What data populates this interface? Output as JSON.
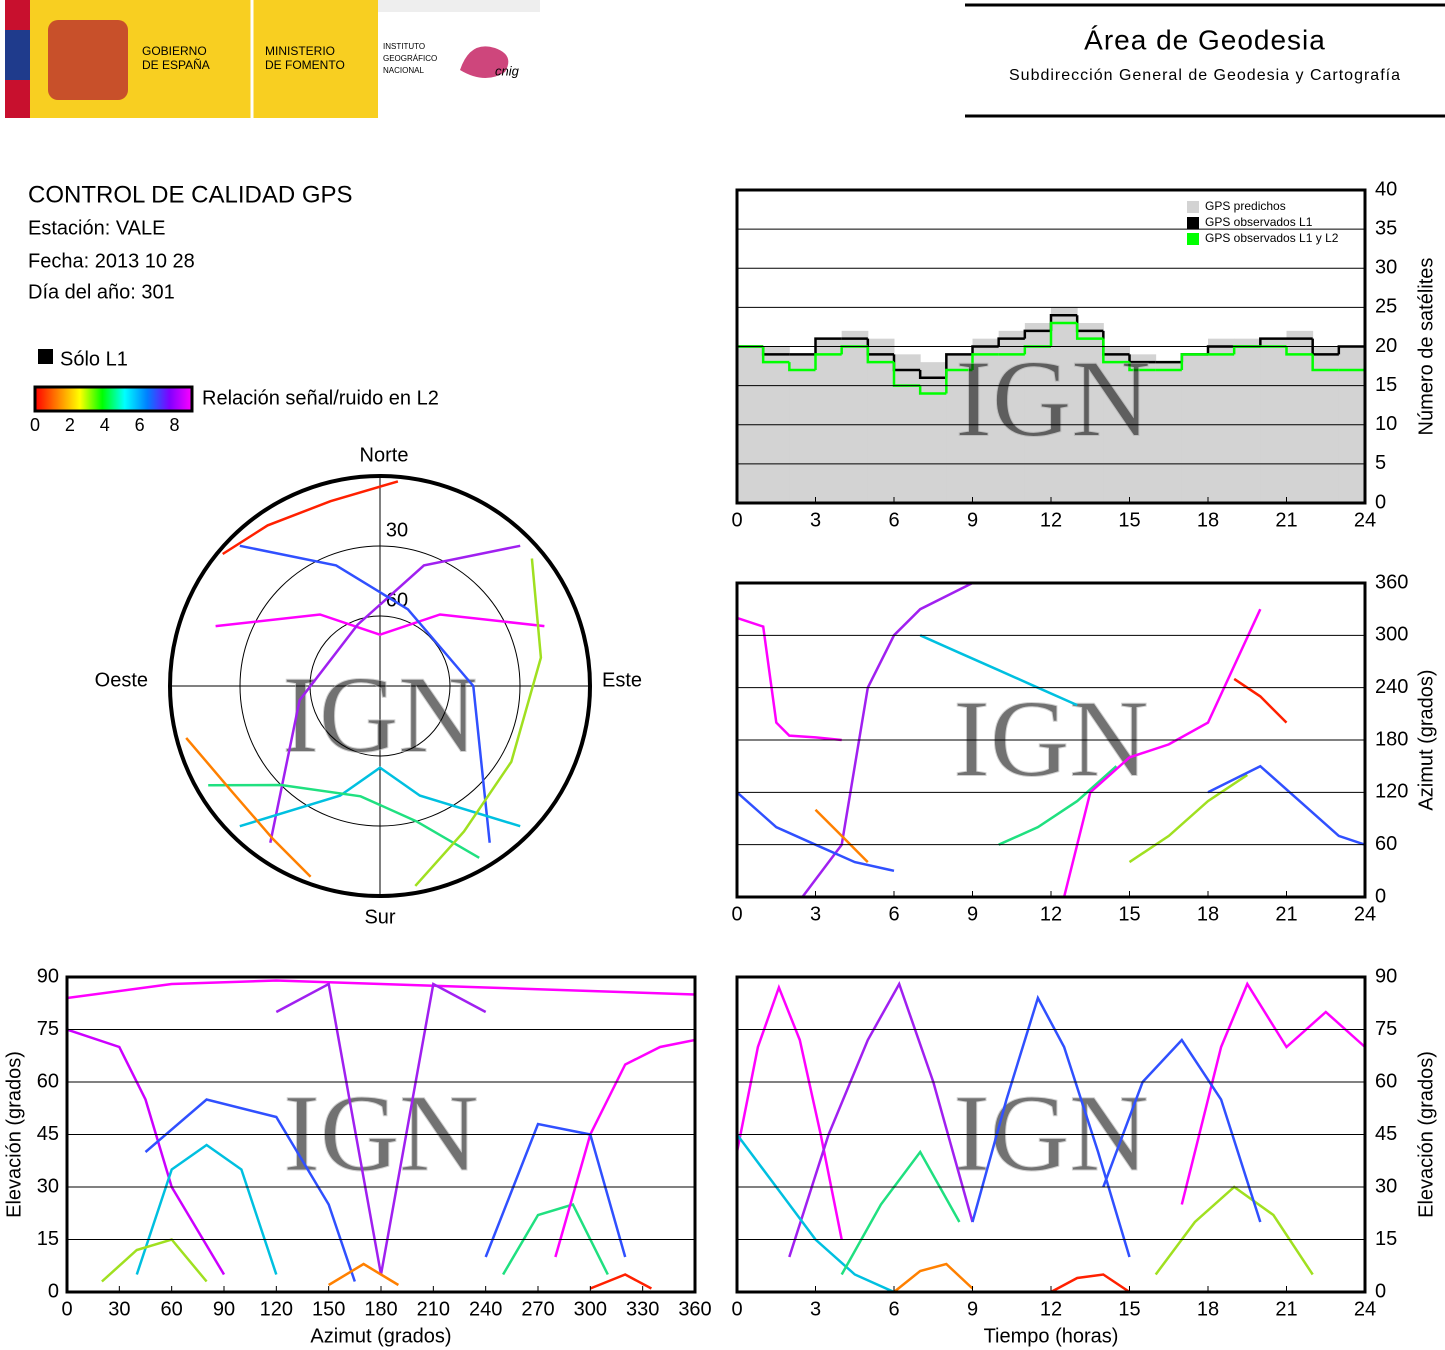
{
  "header": {
    "gobierno": [
      "GOBIERNO",
      "DE ESPAÑA"
    ],
    "ministerio": [
      "MINISTERIO",
      "DE FOMENTO"
    ],
    "instituto": [
      "INSTITUTO",
      "GEOGRÁFICO",
      "NACIONAL"
    ],
    "cnig": "cnig",
    "title": "Área de Geodesia",
    "subtitle": "Subdirección General de Geodesia y Cartografía"
  },
  "report": {
    "title": "CONTROL DE CALIDAD GPS",
    "station": "Estación: VALE",
    "date": "Fecha: 2013 10 28",
    "doy": "Día del año: 301",
    "solo_l1": "Sólo L1",
    "snr_label": "Relación señal/ruido en L2",
    "snr_lim": [
      0,
      9
    ],
    "snr_ticks": [
      0,
      2,
      4,
      6,
      8
    ],
    "snr_colors": [
      "#ff0000",
      "#ff8000",
      "#ffff00",
      "#00ff00",
      "#00ffff",
      "#0080ff",
      "#8000ff",
      "#ff00ff"
    ],
    "watermark": "IGN"
  },
  "chart_data": [
    {
      "type": "polar",
      "north": "Norte",
      "south": "Sur",
      "east": "Este",
      "west": "Oeste",
      "elevation_lim": [
        0,
        90
      ],
      "rticks": [
        30,
        60
      ],
      "series": [
        {
          "color": "#ff00ff",
          "azimuth": [
            290,
            320,
            0,
            40,
            70
          ],
          "elevation": [
            15,
            50,
            68,
            50,
            15
          ]
        },
        {
          "color": "#a020f0",
          "azimuth": [
            45,
            20,
            340,
            260,
            215
          ],
          "elevation": [
            5,
            35,
            62,
            55,
            8
          ]
        },
        {
          "color": "#3050ff",
          "azimuth": [
            315,
            340,
            20,
            90,
            145
          ],
          "elevation": [
            5,
            35,
            55,
            50,
            8
          ]
        },
        {
          "color": "#00c0e0",
          "azimuth": [
            135,
            160,
            180,
            200,
            225
          ],
          "elevation": [
            5,
            40,
            55,
            40,
            5
          ]
        },
        {
          "color": "#20e080",
          "azimuth": [
            240,
            225,
            190,
            165,
            150
          ],
          "elevation": [
            5,
            30,
            42,
            30,
            5
          ]
        },
        {
          "color": "#a0e020",
          "azimuth": [
            50,
            80,
            120,
            150,
            170
          ],
          "elevation": [
            5,
            20,
            25,
            18,
            3
          ]
        },
        {
          "color": "#ff8000",
          "azimuth": [
            200,
            215,
            235,
            255
          ],
          "elevation": [
            3,
            10,
            12,
            4
          ]
        },
        {
          "color": "#ff2000",
          "azimuth": [
            310,
            325,
            345,
            5
          ],
          "elevation": [
            2,
            6,
            8,
            2
          ]
        }
      ]
    },
    {
      "type": "step",
      "ylabel": "Número de satélites",
      "xlim": [
        0,
        24
      ],
      "ylim": [
        0,
        40
      ],
      "xticks": [
        0,
        3,
        6,
        9,
        12,
        15,
        18,
        21,
        24
      ],
      "yticks": [
        0,
        5,
        10,
        15,
        20,
        25,
        30,
        35,
        40
      ],
      "grid": true,
      "legend": "upper right",
      "yaxis_side": "right",
      "x": [
        0,
        1,
        2,
        3,
        4,
        5,
        6,
        7,
        8,
        9,
        10,
        11,
        12,
        13,
        14,
        15,
        16,
        17,
        18,
        19,
        20,
        21,
        22,
        23
      ],
      "series": [
        {
          "name": "GPS predichos",
          "color": "#d3d3d3",
          "fill": true,
          "values": [
            20,
            20,
            19,
            21,
            22,
            21,
            19,
            18,
            19,
            21,
            22,
            23,
            25,
            23,
            20,
            19,
            18,
            19,
            21,
            21,
            21,
            22,
            20,
            20
          ]
        },
        {
          "name": "GPS observados L1",
          "color": "#000000",
          "values": [
            20,
            19,
            19,
            21,
            21,
            19,
            17,
            16,
            19,
            20,
            21,
            22,
            24,
            22,
            19,
            18,
            18,
            19,
            20,
            20,
            21,
            21,
            19,
            20
          ]
        },
        {
          "name": "GPS observados L1 y L2",
          "color": "#00ff00",
          "values": [
            20,
            18,
            17,
            19,
            20,
            18,
            15,
            14,
            17,
            19,
            19,
            20,
            23,
            21,
            18,
            17,
            17,
            19,
            19,
            20,
            20,
            19,
            17,
            17
          ]
        }
      ]
    },
    {
      "type": "line",
      "ylabel": "Azimut (grados)",
      "xlim": [
        0,
        24
      ],
      "ylim": [
        0,
        360
      ],
      "xticks": [
        0,
        3,
        6,
        9,
        12,
        15,
        18,
        21,
        24
      ],
      "yticks": [
        0,
        60,
        120,
        180,
        240,
        300,
        360
      ],
      "grid": true,
      "yaxis_side": "right",
      "series": [
        {
          "color": "#ff00ff",
          "x": [
            0,
            1,
            1.5,
            2,
            3,
            4
          ],
          "values": [
            320,
            310,
            200,
            185,
            183,
            180
          ]
        },
        {
          "color": "#a020f0",
          "x": [
            2.5,
            4,
            5,
            6,
            7,
            9
          ],
          "values": [
            0,
            60,
            240,
            300,
            330,
            360
          ]
        },
        {
          "color": "#3050ff",
          "x": [
            0,
            1.5,
            3,
            4.5,
            6
          ],
          "values": [
            120,
            80,
            60,
            40,
            30
          ]
        },
        {
          "color": "#00c0e0",
          "x": [
            7,
            8.5,
            10,
            11.5,
            13
          ],
          "values": [
            300,
            280,
            260,
            240,
            220
          ]
        },
        {
          "color": "#20e080",
          "x": [
            10,
            11.5,
            13,
            14.5
          ],
          "values": [
            60,
            80,
            110,
            150
          ]
        },
        {
          "color": "#a0e020",
          "x": [
            15,
            16.5,
            18,
            19.5
          ],
          "values": [
            40,
            70,
            110,
            140
          ]
        },
        {
          "color": "#ff8000",
          "x": [
            3,
            4,
            5
          ],
          "values": [
            100,
            70,
            40
          ]
        },
        {
          "color": "#ff2000",
          "x": [
            19,
            20,
            21
          ],
          "values": [
            250,
            230,
            200
          ]
        },
        {
          "color": "#ff00ff",
          "x": [
            12.5,
            13.5,
            15,
            16.5,
            18,
            20
          ],
          "values": [
            0,
            120,
            160,
            175,
            200,
            330
          ]
        },
        {
          "color": "#3050ff",
          "x": [
            18,
            20,
            21.5,
            23,
            24
          ],
          "values": [
            120,
            150,
            110,
            70,
            60
          ]
        }
      ]
    },
    {
      "type": "line",
      "xlabel": "Azimut (grados)",
      "ylabel": "Elevación (grados)",
      "xlim": [
        0,
        360
      ],
      "ylim": [
        0,
        90
      ],
      "xticks": [
        0,
        30,
        60,
        90,
        120,
        150,
        180,
        210,
        240,
        270,
        300,
        330,
        360
      ],
      "yticks": [
        0,
        15,
        30,
        45,
        60,
        75,
        90
      ],
      "grid": true,
      "yaxis_side": "left",
      "series": [
        {
          "color": "#ff00ff",
          "x": [
            0,
            60,
            120,
            180,
            240,
            300,
            360
          ],
          "values": [
            84,
            88,
            89,
            88,
            87,
            86,
            85
          ]
        },
        {
          "color": "#cc00ff",
          "x": [
            0,
            30,
            45,
            60,
            90
          ],
          "values": [
            75,
            70,
            55,
            30,
            5
          ]
        },
        {
          "color": "#a020f0",
          "x": [
            120,
            150,
            180,
            210,
            240
          ],
          "values": [
            80,
            88,
            5,
            88,
            80
          ]
        },
        {
          "color": "#3050ff",
          "x": [
            45,
            80,
            120,
            150,
            165
          ],
          "values": [
            40,
            55,
            50,
            25,
            3
          ]
        },
        {
          "color": "#00c0e0",
          "x": [
            40,
            60,
            80,
            100,
            120
          ],
          "values": [
            5,
            35,
            42,
            35,
            5
          ]
        },
        {
          "color": "#20e080",
          "x": [
            250,
            270,
            290,
            310
          ],
          "values": [
            5,
            22,
            25,
            5
          ]
        },
        {
          "color": "#a0e020",
          "x": [
            20,
            40,
            60,
            80
          ],
          "values": [
            3,
            12,
            15,
            3
          ]
        },
        {
          "color": "#ff8000",
          "x": [
            150,
            170,
            190
          ],
          "values": [
            2,
            8,
            2
          ]
        },
        {
          "color": "#ff2000",
          "x": [
            300,
            320,
            335
          ],
          "values": [
            1,
            5,
            1
          ]
        },
        {
          "color": "#ff00ff",
          "x": [
            280,
            300,
            320,
            340,
            360
          ],
          "values": [
            10,
            45,
            65,
            70,
            72
          ]
        },
        {
          "color": "#3050ff",
          "x": [
            240,
            270,
            300,
            320
          ],
          "values": [
            10,
            48,
            45,
            10
          ]
        }
      ]
    },
    {
      "type": "line",
      "xlabel": "Tiempo (horas)",
      "ylabel": "Elevación (grados)",
      "xlim": [
        0,
        24
      ],
      "ylim": [
        0,
        90
      ],
      "xticks": [
        0,
        3,
        6,
        9,
        12,
        15,
        18,
        21,
        24
      ],
      "yticks": [
        0,
        15,
        30,
        45,
        60,
        75,
        90
      ],
      "grid": true,
      "yaxis_side": "right",
      "series": [
        {
          "color": "#ff00ff",
          "x": [
            0,
            0.8,
            1.6,
            2.4,
            3.2,
            4
          ],
          "values": [
            40,
            70,
            87,
            72,
            45,
            15
          ]
        },
        {
          "color": "#a020f0",
          "x": [
            2,
            3.5,
            5,
            6.2,
            7.5,
            9
          ],
          "values": [
            10,
            45,
            72,
            88,
            60,
            20
          ]
        },
        {
          "color": "#3050ff",
          "x": [
            9,
            10.3,
            11.5,
            12.5,
            13.8,
            15
          ],
          "values": [
            20,
            55,
            84,
            70,
            40,
            10
          ]
        },
        {
          "color": "#00c0e0",
          "x": [
            0,
            1.5,
            3,
            4.5,
            6
          ],
          "values": [
            45,
            30,
            15,
            5,
            0
          ]
        },
        {
          "color": "#20e080",
          "x": [
            4,
            5.5,
            7,
            8.5
          ],
          "values": [
            5,
            25,
            40,
            20
          ]
        },
        {
          "color": "#a0e020",
          "x": [
            16,
            17.5,
            19,
            20.5,
            22
          ],
          "values": [
            5,
            20,
            30,
            22,
            5
          ]
        },
        {
          "color": "#ff8000",
          "x": [
            6,
            7,
            8,
            9
          ],
          "values": [
            0,
            6,
            8,
            1
          ]
        },
        {
          "color": "#ff2000",
          "x": [
            12,
            13,
            14,
            15
          ],
          "values": [
            0,
            4,
            5,
            0
          ]
        },
        {
          "color": "#ff00ff",
          "x": [
            17,
            18.5,
            19.5,
            21,
            22.5,
            24
          ],
          "values": [
            25,
            70,
            88,
            70,
            80,
            70
          ]
        },
        {
          "color": "#3050ff",
          "x": [
            14,
            15.5,
            17,
            18.5,
            20
          ],
          "values": [
            30,
            60,
            72,
            55,
            20
          ]
        }
      ]
    }
  ]
}
